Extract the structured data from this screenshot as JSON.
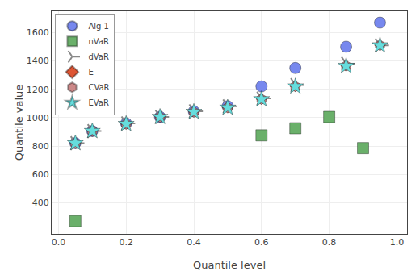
{
  "chart_data": {
    "type": "scatter",
    "x": [
      0.05,
      0.1,
      0.2,
      0.3,
      0.4,
      0.5,
      0.6,
      0.7,
      0.8,
      0.85,
      0.9,
      0.95
    ],
    "series": [
      {
        "name": "Alg 1",
        "color": "#7788ee",
        "marker": "circle",
        "values": [
          820,
          905,
          960,
          1005,
          1045,
          1080,
          1220,
          1350,
          null,
          1500,
          null,
          1670
        ]
      },
      {
        "name": "nVaR",
        "color": "#6ab06a",
        "marker": "square",
        "values": [
          270,
          null,
          null,
          null,
          null,
          null,
          875,
          925,
          1005,
          null,
          785,
          null
        ]
      },
      {
        "name": "dVaR",
        "color": "#888888",
        "marker": "tri_right",
        "values": [
          820,
          905,
          960,
          1005,
          1045,
          1080,
          1135,
          1230,
          null,
          1380,
          null,
          1510
        ]
      },
      {
        "name": "E",
        "color": "#dd5533",
        "marker": "diamond",
        "values": [
          820,
          905,
          955,
          1005,
          1040,
          1070,
          1130,
          1220,
          null,
          1365,
          null,
          1510
        ]
      },
      {
        "name": "CVaR",
        "color": "#cc8888",
        "marker": "hexagon",
        "values": [
          820,
          905,
          955,
          1005,
          1040,
          1070,
          1130,
          1220,
          null,
          1365,
          null,
          1510
        ]
      },
      {
        "name": "EVaR",
        "color": "#66dddd",
        "marker": "star",
        "values": [
          820,
          905,
          955,
          1005,
          1040,
          1070,
          1130,
          1220,
          null,
          1365,
          null,
          1510
        ]
      }
    ],
    "xlabel": "Quantile level",
    "ylabel": "Quantile value",
    "xlim": [
      -0.02,
      1.03
    ],
    "ylim": [
      180,
      1750
    ],
    "xticks": [
      {
        "value": 0,
        "label": "0.0"
      },
      0.2,
      0.4,
      0.6,
      0.8,
      {
        "value": 1,
        "label": "1.0"
      }
    ],
    "yticks": [
      400,
      600,
      800,
      1000,
      1200,
      1400,
      1600
    ],
    "grid": true,
    "legend": "upper left"
  }
}
